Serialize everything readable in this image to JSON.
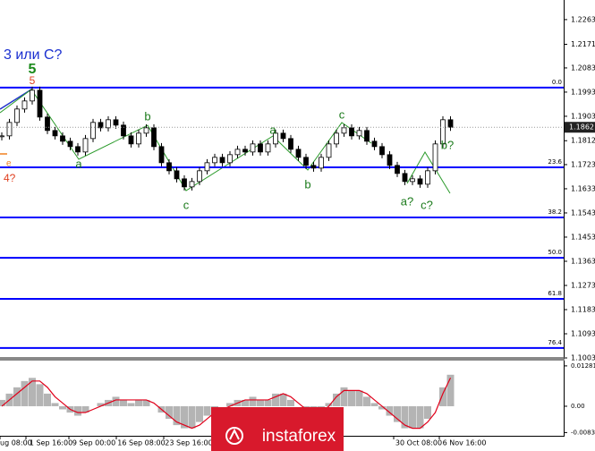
{
  "chart_data": {
    "type": "candlestick",
    "ylim": [
      1.1003,
      1.2336
    ],
    "yticks": [
      1.2263,
      1.2171,
      1.2083,
      1.1993,
      1.1903,
      1.1812,
      1.1723,
      1.1633,
      1.1543,
      1.1453,
      1.1363,
      1.1273,
      1.1183,
      1.1093,
      1.1003
    ],
    "series": [
      {
        "color": "#000000",
        "values": [
          1.183,
          1.188,
          1.193,
          1.196,
          1.2,
          1.19,
          1.185,
          1.183,
          1.181,
          1.179,
          1.177,
          1.182,
          1.188,
          1.186,
          1.189,
          1.187,
          1.183,
          1.18,
          1.184,
          1.186,
          1.179,
          1.173,
          1.17,
          1.167,
          1.164,
          1.166,
          1.17,
          1.173,
          1.175,
          1.173,
          1.176,
          1.178,
          1.177,
          1.18,
          1.177,
          1.18,
          1.184,
          1.182,
          1.178,
          1.175,
          1.172,
          1.171,
          1.175,
          1.18,
          1.184,
          1.186,
          1.183,
          1.185,
          1.181,
          1.179,
          1.176,
          1.172,
          1.169,
          1.166,
          1.167,
          1.165,
          1.17,
          1.18,
          1.189,
          1.1862
        ]
      }
    ],
    "last_price": 1.1862,
    "fib_levels": [
      {
        "value": 1.201,
        "label": "0.0"
      },
      {
        "value": 1.1713,
        "label": "23.6"
      },
      {
        "value": 1.1526,
        "label": "38.2"
      },
      {
        "value": 1.1376,
        "label": "50.0"
      },
      {
        "value": 1.1223,
        "label": "61.8"
      },
      {
        "value": 1.104,
        "label": "76.4"
      }
    ],
    "fib_color": "#0000ff",
    "annotations": [
      "3 или С?",
      "5",
      "5",
      "a",
      "b",
      "c",
      "a",
      "b",
      "c",
      "a?",
      "b?",
      "c?",
      "e",
      "4?"
    ],
    "x_labels": [
      "ug 08:00",
      "1 Sep 16:00",
      "9 Sep 00:00",
      "16 Sep 08:00",
      "23 Sep 16:00",
      "30 Oct 08:00",
      "6 Nov 16:00"
    ],
    "oscillator": {
      "type": "histogram",
      "ylim": [
        -0.0091,
        0.0142
      ],
      "yticks": [
        0.01281,
        {
          "value": 0,
          "label": "0.00"
        },
        -0.00836
      ],
      "series": [
        {
          "color": "#b4b4b4",
          "values": [
            0.002,
            0.004,
            0.006,
            0.008,
            0.009,
            0.007,
            0.004,
            0.001,
            -0.001,
            -0.002,
            -0.003,
            -0.002,
            0.0,
            0.001,
            0.002,
            0.003,
            0.002,
            0.001,
            0.002,
            0.002,
            0.0,
            -0.002,
            -0.004,
            -0.006,
            -0.007,
            -0.007,
            -0.005,
            -0.003,
            -0.001,
            0.0,
            0.001,
            0.002,
            0.002,
            0.003,
            0.002,
            0.002,
            0.004,
            0.004,
            0.002,
            0.0,
            -0.002,
            -0.003,
            -0.002,
            0.001,
            0.004,
            0.006,
            0.005,
            0.005,
            0.003,
            0.001,
            -0.001,
            -0.003,
            -0.005,
            -0.007,
            -0.007,
            -0.007,
            -0.004,
            0.0,
            0.006,
            0.01
          ]
        },
        {
          "color": "#e0001a",
          "values": [
            0.0,
            0.002,
            0.004,
            0.006,
            0.008,
            0.008,
            0.006,
            0.003,
            0.001,
            -0.001,
            -0.002,
            -0.002,
            -0.001,
            0.0,
            0.001,
            0.002,
            0.002,
            0.002,
            0.002,
            0.002,
            0.001,
            -0.001,
            -0.003,
            -0.005,
            -0.006,
            -0.007,
            -0.006,
            -0.004,
            -0.002,
            -0.001,
            0.0,
            0.001,
            0.002,
            0.002,
            0.002,
            0.002,
            0.003,
            0.004,
            0.003,
            0.001,
            -0.001,
            -0.002,
            -0.002,
            0.0,
            0.003,
            0.005,
            0.005,
            0.005,
            0.004,
            0.002,
            0.0,
            -0.002,
            -0.004,
            -0.006,
            -0.007,
            -0.007,
            -0.005,
            -0.002,
            0.004,
            0.009
          ]
        }
      ]
    },
    "watermark": "instaforex"
  }
}
